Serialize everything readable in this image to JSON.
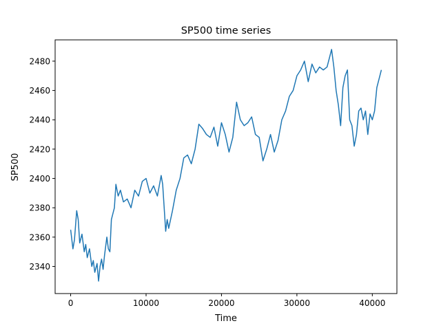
{
  "chart_data": {
    "type": "line",
    "title": "SP500 time series",
    "xlabel": "Time",
    "ylabel": "SP500",
    "xlim": [
      -2060,
      43260
    ],
    "ylim": [
      2321.5,
      2494.5
    ],
    "xticks": [
      0,
      10000,
      20000,
      30000,
      40000
    ],
    "xtick_labels": [
      "0",
      "10000",
      "20000",
      "30000",
      "40000"
    ],
    "yticks": [
      2340,
      2360,
      2380,
      2400,
      2420,
      2440,
      2460,
      2480
    ],
    "ytick_labels": [
      "2340",
      "2360",
      "2380",
      "2400",
      "2420",
      "2440",
      "2460",
      "2480"
    ],
    "grid": false,
    "legend": "none",
    "series": [
      {
        "color": "#1f77b4",
        "x": [
          0,
          300,
          500,
          800,
          1000,
          1200,
          1500,
          1800,
          2000,
          2200,
          2500,
          2800,
          3000,
          3200,
          3500,
          3700,
          3900,
          4100,
          4300,
          4500,
          4800,
          5000,
          5200,
          5400,
          5600,
          5800,
          6000,
          6300,
          6600,
          7000,
          7500,
          8000,
          8500,
          9000,
          9500,
          10000,
          10500,
          11000,
          11500,
          12000,
          12200,
          12400,
          12600,
          12800,
          13000,
          13500,
          14000,
          14500,
          15000,
          15500,
          16000,
          16500,
          17000,
          17500,
          18000,
          18500,
          19000,
          19500,
          20000,
          20500,
          21000,
          21500,
          22000,
          22500,
          23000,
          23500,
          24000,
          24500,
          25000,
          25500,
          26000,
          26500,
          27000,
          27500,
          28000,
          28500,
          29000,
          29500,
          30000,
          30500,
          31000,
          31500,
          32000,
          32500,
          33000,
          33500,
          34000,
          34300,
          34600,
          34900,
          35200,
          35500,
          35800,
          36100,
          36400,
          36700,
          37000,
          37300,
          37600,
          37900,
          38200,
          38500,
          38800,
          39100,
          39400,
          39700,
          40000,
          40300,
          40600,
          40900,
          41200
        ],
        "y": [
          2365,
          2352,
          2358,
          2378,
          2372,
          2356,
          2362,
          2350,
          2355,
          2346,
          2352,
          2340,
          2344,
          2336,
          2342,
          2330,
          2340,
          2345,
          2338,
          2348,
          2360,
          2352,
          2350,
          2372,
          2376,
          2380,
          2396,
          2388,
          2392,
          2384,
          2386,
          2380,
          2392,
          2388,
          2398,
          2400,
          2390,
          2395,
          2388,
          2402,
          2396,
          2380,
          2364,
          2372,
          2366,
          2378,
          2392,
          2400,
          2414,
          2416,
          2410,
          2420,
          2437,
          2434,
          2430,
          2428,
          2435,
          2422,
          2438,
          2430,
          2418,
          2428,
          2452,
          2440,
          2436,
          2438,
          2442,
          2430,
          2428,
          2412,
          2420,
          2430,
          2418,
          2426,
          2440,
          2446,
          2456,
          2460,
          2470,
          2474,
          2480,
          2466,
          2478,
          2472,
          2476,
          2474,
          2476,
          2482,
          2488,
          2476,
          2460,
          2450,
          2436,
          2462,
          2470,
          2474,
          2440,
          2436,
          2422,
          2430,
          2446,
          2448,
          2440,
          2446,
          2430,
          2444,
          2440,
          2446,
          2462,
          2468,
          2474
        ]
      }
    ]
  }
}
